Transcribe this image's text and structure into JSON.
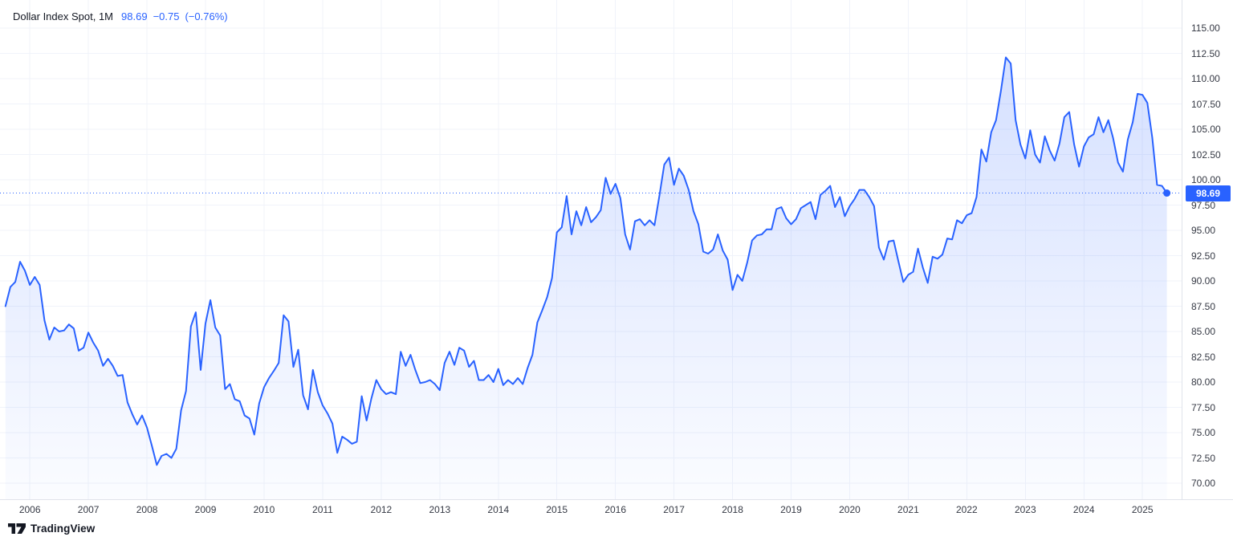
{
  "legend": {
    "symbol": "Dollar Index Spot, 1M",
    "last_price": "98.69",
    "change": "−0.75",
    "change_pct": "(−0.76%)"
  },
  "colors": {
    "accent": "#2962FF",
    "grid": "#f0f3fa",
    "axis_border": "#e0e3eb",
    "axis_text": "#363a45",
    "title_text": "#131722",
    "badge_bg": "#2962FF",
    "badge_text": "#ffffff",
    "area_top": "rgba(41,98,255,0.22)",
    "area_bottom": "rgba(41,98,255,0.02)"
  },
  "price_scale": {
    "labels": [
      "115.00",
      "112.50",
      "110.00",
      "107.50",
      "105.00",
      "102.50",
      "100.00",
      "97.50",
      "95.00",
      "92.50",
      "90.00",
      "87.50",
      "85.00",
      "82.50",
      "80.00",
      "77.50",
      "75.00",
      "72.50",
      "70.00"
    ],
    "current_label": "98.69"
  },
  "time_scale": {
    "years": [
      "2006",
      "2007",
      "2008",
      "2009",
      "2010",
      "2011",
      "2012",
      "2013",
      "2014",
      "2015",
      "2016",
      "2017",
      "2018",
      "2019",
      "2020",
      "2021",
      "2022",
      "2023",
      "2024",
      "2025"
    ]
  },
  "watermark": {
    "logo_text": "TradingView"
  },
  "chart_data": {
    "type": "area",
    "title": "Dollar Index Spot",
    "timeframe": "1M",
    "xlabel": "",
    "ylabel": "",
    "ylim": [
      70,
      115
    ],
    "y_tick_step": 2.5,
    "grid": true,
    "legend_position": "top-left",
    "x_start": "2005-08",
    "x_end": "2025-06",
    "series": [
      {
        "name": "Dollar Index Spot",
        "monthly_close": [
          87.5,
          89.4,
          89.9,
          91.9,
          91.0,
          89.6,
          90.4,
          89.6,
          86.1,
          84.2,
          85.4,
          85.0,
          85.1,
          85.7,
          85.3,
          83.1,
          83.4,
          84.9,
          83.9,
          83.1,
          81.6,
          82.3,
          81.6,
          80.6,
          80.7,
          78.0,
          76.8,
          75.8,
          76.7,
          75.5,
          73.7,
          71.8,
          72.7,
          72.9,
          72.5,
          73.4,
          77.2,
          79.1,
          85.5,
          86.9,
          81.2,
          85.8,
          88.1,
          85.4,
          84.6,
          79.3,
          79.8,
          78.3,
          78.1,
          76.7,
          76.4,
          74.8,
          77.9,
          79.5,
          80.4,
          81.1,
          81.9,
          86.6,
          86.0,
          81.5,
          83.2,
          78.7,
          77.3,
          81.2,
          79.0,
          77.7,
          76.9,
          75.9,
          73.0,
          74.6,
          74.3,
          73.9,
          74.1,
          78.6,
          76.2,
          78.4,
          80.2,
          79.3,
          78.8,
          79.0,
          78.8,
          83.0,
          81.6,
          82.7,
          81.2,
          79.9,
          80.0,
          80.2,
          79.8,
          79.2,
          81.9,
          83.0,
          81.7,
          83.4,
          83.1,
          81.5,
          82.1,
          80.2,
          80.2,
          80.7,
          80.0,
          81.3,
          79.7,
          80.2,
          79.8,
          80.4,
          79.8,
          81.4,
          82.7,
          85.9,
          87.1,
          88.4,
          90.3,
          94.8,
          95.3,
          98.4,
          94.6,
          96.9,
          95.5,
          97.3,
          95.8,
          96.3,
          97.0,
          100.2,
          98.6,
          99.6,
          98.2,
          94.6,
          93.1,
          95.9,
          96.1,
          95.5,
          96.0,
          95.5,
          98.4,
          101.5,
          102.2,
          99.5,
          101.1,
          100.4,
          99.0,
          96.9,
          95.6,
          92.9,
          92.7,
          93.1,
          94.6,
          93.0,
          92.1,
          89.1,
          90.6,
          90.0,
          91.8,
          94.0,
          94.5,
          94.6,
          95.1,
          95.1,
          97.1,
          97.3,
          96.2,
          95.6,
          96.1,
          97.2,
          97.5,
          97.8,
          96.1,
          98.5,
          98.9,
          99.4,
          97.3,
          98.3,
          96.4,
          97.4,
          98.1,
          99.0,
          99.0,
          98.3,
          97.4,
          93.3,
          92.1,
          93.9,
          94.0,
          91.9,
          89.9,
          90.6,
          90.9,
          93.2,
          91.3,
          89.8,
          92.4,
          92.2,
          92.6,
          94.2,
          94.1,
          96.0,
          95.7,
          96.5,
          96.7,
          98.3,
          103.0,
          101.8,
          104.7,
          105.9,
          108.8,
          112.1,
          111.5,
          105.9,
          103.5,
          102.1,
          104.9,
          102.5,
          101.7,
          104.3,
          102.9,
          101.9,
          103.6,
          106.2,
          106.7,
          103.5,
          101.3,
          103.3,
          104.2,
          104.5,
          106.2,
          104.7,
          105.9,
          104.1,
          101.7,
          100.8,
          104.0,
          105.7,
          108.5,
          108.4,
          107.6,
          104.2,
          99.5,
          99.4,
          98.69
        ]
      }
    ],
    "last": {
      "date": "2025-06",
      "value": 98.69,
      "change": -0.75,
      "change_pct": -0.76
    }
  }
}
